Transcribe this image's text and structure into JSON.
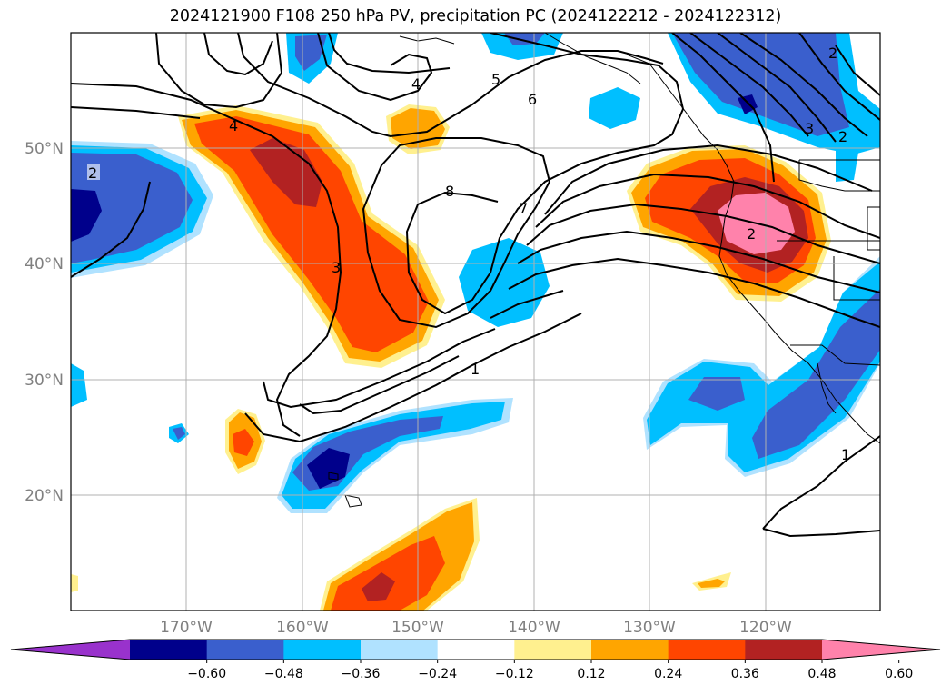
{
  "title": "2024121900 F108 250 hPa PV, precipitation PC (2024122212 - 2024122312)",
  "lat_labels": [
    "50°N",
    "40°N",
    "30°N",
    "20°N"
  ],
  "lon_labels": [
    "170°W",
    "160°W",
    "150°W",
    "140°W",
    "130°W",
    "120°W"
  ],
  "contour_labels": [
    "2",
    "4",
    "5",
    "6",
    "4",
    "8",
    "7",
    "3",
    "1",
    "2",
    "3",
    "2",
    "1",
    "2"
  ],
  "colorbar": {
    "colors": [
      "#9932cc",
      "#00008b",
      "#3a5fcd",
      "#00bfff",
      "#b0e2ff",
      "#ffffff",
      "#fff08f",
      "#ffa500",
      "#ff4500",
      "#b22222",
      "#ff82ab"
    ],
    "ticks": [
      "−0.60",
      "−0.48",
      "−0.36",
      "−0.24",
      "−0.12",
      "0.12",
      "0.24",
      "0.36",
      "0.48",
      "0.60"
    ]
  }
}
